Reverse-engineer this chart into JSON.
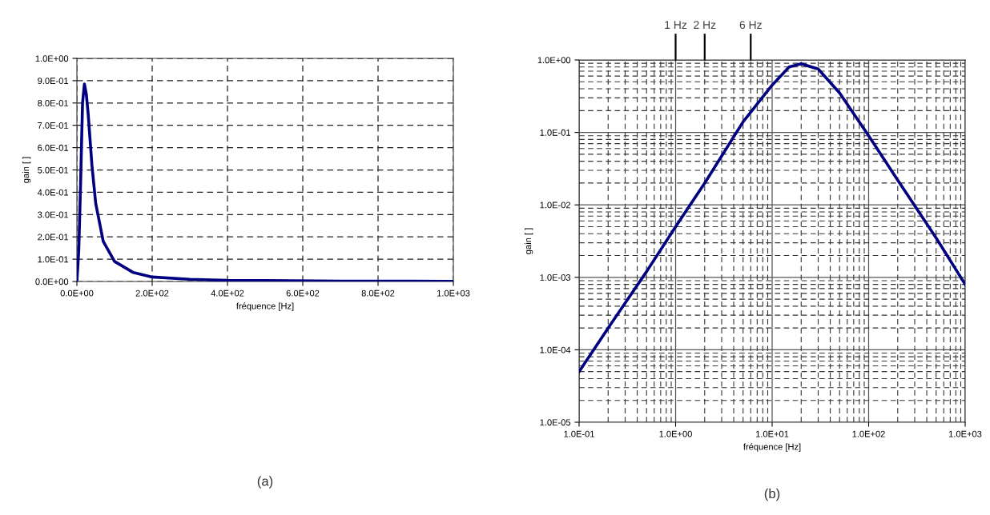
{
  "chart_data": [
    {
      "type": "line",
      "xlabel": "fréquence [Hz]",
      "ylabel": "gain [ ]",
      "annotations": [
        "(a)"
      ],
      "x": [
        0,
        5,
        10,
        15,
        20,
        25,
        30,
        40,
        50,
        70,
        100,
        150,
        200,
        300,
        400,
        500,
        700,
        1000
      ],
      "series": [
        {
          "color": "#000080",
          "values": [
            0,
            0.14,
            0.45,
            0.8,
            0.885,
            0.84,
            0.75,
            0.52,
            0.35,
            0.18,
            0.09,
            0.04,
            0.02,
            0.01,
            0.005,
            0.004,
            0.002,
            0.001
          ]
        }
      ],
      "xlim": [
        0,
        1000
      ],
      "ylim": [
        0,
        1
      ],
      "xticks": [
        {
          "value": 0,
          "label": "0.0E+00"
        },
        {
          "value": 200,
          "label": "2.0E+02"
        },
        {
          "value": 400,
          "label": "4.0E+02"
        },
        {
          "value": 600,
          "label": "6.0E+02"
        },
        {
          "value": 800,
          "label": "8.0E+02"
        },
        {
          "value": 1000,
          "label": "1.0E+03"
        }
      ],
      "yticks": [
        {
          "value": 0,
          "label": "0.0E+00"
        },
        {
          "value": 0.1,
          "label": "1.0E-01"
        },
        {
          "value": 0.2,
          "label": "2.0E-01"
        },
        {
          "value": 0.3,
          "label": "3.0E-01"
        },
        {
          "value": 0.4,
          "label": "4.0E-01"
        },
        {
          "value": 0.5,
          "label": "5.0E-01"
        },
        {
          "value": 0.6,
          "label": "6.0E-01"
        },
        {
          "value": 0.7,
          "label": "7.0E-01"
        },
        {
          "value": 0.8,
          "label": "8.0E-01"
        },
        {
          "value": 0.9,
          "label": "9.0E-01"
        },
        {
          "value": 1,
          "label": "1.0E+00"
        }
      ],
      "grid": true
    },
    {
      "type": "line",
      "xlabel": "fréquence [Hz]",
      "ylabel": "gain [ ]",
      "log": "xy",
      "annotations": [
        "(b)"
      ],
      "ref_lines": [
        {
          "axis": "x",
          "value": 1,
          "label": "1 Hz"
        },
        {
          "axis": "x",
          "value": 2,
          "label": "2 Hz"
        },
        {
          "axis": "x",
          "value": 6,
          "label": "6 Hz"
        }
      ],
      "x": [
        0.1,
        0.2,
        0.5,
        1,
        2,
        5,
        10,
        15,
        20,
        30,
        50,
        100,
        200,
        500,
        1000
      ],
      "series": [
        {
          "color": "#000080",
          "values": [
            5e-05,
            0.0002,
            0.0012,
            0.005,
            0.02,
            0.14,
            0.45,
            0.8,
            0.885,
            0.75,
            0.35,
            0.09,
            0.022,
            0.0035,
            0.0008
          ]
        }
      ],
      "xlim": [
        0.1,
        1000
      ],
      "ylim": [
        1e-05,
        1
      ],
      "xticks": [
        {
          "value": 0.1,
          "label": "1.0E-01"
        },
        {
          "value": 1,
          "label": "1.0E+00"
        },
        {
          "value": 10,
          "label": "1.0E+01"
        },
        {
          "value": 100,
          "label": "1.0E+02"
        },
        {
          "value": 1000,
          "label": "1.0E+03"
        }
      ],
      "yticks": [
        {
          "value": 1e-05,
          "label": "1.0E-05"
        },
        {
          "value": 0.0001,
          "label": "1.0E-04"
        },
        {
          "value": 0.001,
          "label": "1.0E-03"
        },
        {
          "value": 0.01,
          "label": "1.0E-02"
        },
        {
          "value": 0.1,
          "label": "1.0E-01"
        },
        {
          "value": 1,
          "label": "1.0E+00"
        }
      ],
      "grid": true
    }
  ]
}
